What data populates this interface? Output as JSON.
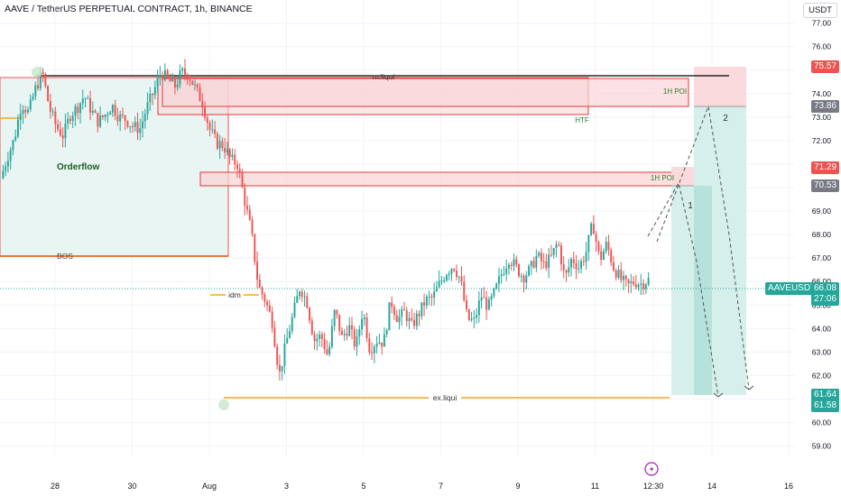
{
  "header": {
    "title": "AAVE / TetherUS PERPETUAL CONTRACT, 1h, BINANCE",
    "currency": "USDT"
  },
  "colors": {
    "up": "#26a69a",
    "down": "#ef5350",
    "zone_fill": "#f9d4d7",
    "orderflow_fill": "#e8f5f3",
    "target_fill": "#cfece8",
    "orange": "#f5a623",
    "bos_line": "#e65100"
  },
  "chart_data": {
    "type": "candlestick",
    "symbol": "AAVEUSDT.P",
    "timeframe": "1h",
    "y_ticks": [
      "59.00",
      "60.00",
      "61.00",
      "62.00",
      "63.00",
      "64.00",
      "65.00",
      "66.00",
      "67.00",
      "68.00",
      "69.00",
      "70.00",
      "71.00",
      "72.00",
      "73.00",
      "74.00",
      "75.00",
      "76.00",
      "77.00"
    ],
    "ylim": [
      58.6,
      77.6
    ],
    "x_ticks": [
      "28",
      "30",
      "Aug",
      "3",
      "5",
      "7",
      "9",
      "11",
      "12:30",
      "14",
      "16"
    ],
    "price_labels": {
      "last": {
        "value": "66.08",
        "countdown": "27:06",
        "name": "AAVEUSDT.P"
      },
      "zone_top": "75.57",
      "target_top": "73.86",
      "poi_top": "71.29",
      "poi_bottom": "70.53",
      "target_low_1": "61.64",
      "target_low_2": "61.58"
    },
    "annotations": {
      "orderflow": "Orderflow",
      "bos": "BOS",
      "idm": "idm",
      "m_liqui": "m.liqui",
      "ex_liqui": "ex.liqui",
      "htf": "HTF",
      "poi_1h_upper": "1H POI",
      "poi_1h_lower": "1H POI",
      "leg1": "1",
      "leg2": "2"
    },
    "levels": {
      "m_liqui": 75.17,
      "ex_liqui": 61.48,
      "bos": 67.51,
      "idm": 66.09
    },
    "ohlc_path": [
      70.4,
      71.3,
      72.1,
      73.6,
      73.2,
      74.2,
      74.9,
      73.4,
      72.6,
      72.2,
      73.1,
      73.4,
      73.9,
      73.3,
      72.8,
      73.1,
      73.5,
      73.0,
      72.9,
      72.6,
      72.5,
      73.4,
      74.1,
      74.9,
      74.6,
      74.3,
      74.9,
      74.8,
      74.2,
      73.6,
      72.5,
      71.9,
      71.8,
      71.2,
      71.0,
      69.5,
      68.1,
      65.8,
      65.2,
      64.3,
      62.0,
      63.4,
      64.6,
      65.8,
      65.1,
      63.5,
      63.7,
      62.8,
      64.8,
      63.6,
      64.1,
      63.2,
      64.8,
      63.1,
      63.5,
      63.4,
      65.2,
      64.4,
      64.7,
      64.1,
      64.6,
      65.2,
      65.3,
      65.9,
      66.4,
      66.7,
      66.1,
      64.4,
      64.3,
      65.4,
      64.9,
      65.6,
      66.4,
      67.0,
      66.6,
      66.2,
      66.5,
      67.1,
      66.7,
      67.0,
      67.7,
      66.1,
      67.0,
      66.6,
      67.2,
      68.5,
      66.9,
      67.6,
      66.6,
      66.1,
      65.8,
      66.0,
      65.9,
      66.08
    ],
    "ohlc_path_span": {
      "start": "Jul 27 06:00",
      "end": "Aug 11 12:30"
    }
  }
}
